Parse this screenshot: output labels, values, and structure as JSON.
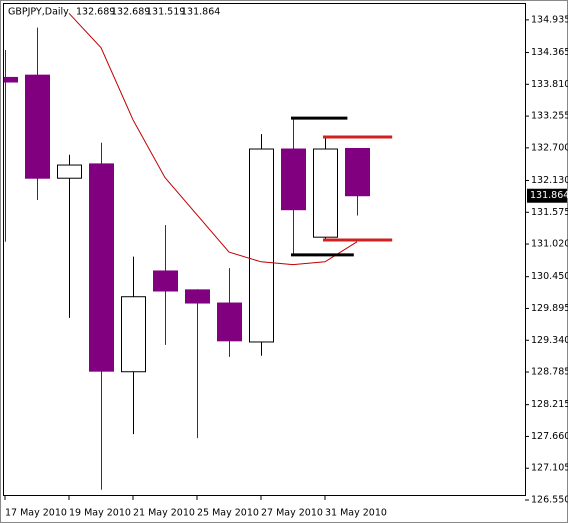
{
  "chart_data": {
    "type": "candlestick",
    "title": "GBPJPY,Daily",
    "categories": [
      "17 May 2010",
      null,
      "19 May 2010",
      null,
      "21 May 2010",
      null,
      "25 May 2010",
      null,
      "27 May 2010",
      null,
      "31 May 2010",
      null
    ],
    "open": [
      133.93,
      133.97,
      132.17,
      132.42,
      128.79,
      130.55,
      130.22,
      129.99,
      129.31,
      132.68,
      131.14,
      132.689
    ],
    "high": [
      134.41,
      134.8,
      132.58,
      132.79,
      130.8,
      131.35,
      130.23,
      130.6,
      132.94,
      133.24,
      132.87,
      132.689
    ],
    "low": [
      131.06,
      131.79,
      129.73,
      126.73,
      127.7,
      129.26,
      127.63,
      129.05,
      129.07,
      130.83,
      131.09,
      131.519
    ],
    "close": [
      133.85,
      132.17,
      132.4,
      128.8,
      130.1,
      130.2,
      129.99,
      129.33,
      132.68,
      131.62,
      132.68,
      131.864
    ],
    "up_color": "#ffffff",
    "down_color": "#800080",
    "ma": {
      "color": "#c00000",
      "values": [
        null,
        null,
        135.05,
        134.45,
        133.19,
        132.18,
        131.53,
        130.88,
        130.71,
        130.66,
        130.71,
        131.06
      ]
    },
    "levels": [
      {
        "value": 133.22,
        "from": 9,
        "to": 10.7,
        "color": "#000000"
      },
      {
        "value": 130.83,
        "from": 9,
        "to": 10.9,
        "color": "#000000"
      },
      {
        "value": 132.89,
        "from": 10,
        "to": 12.1,
        "color": "#d02020"
      },
      {
        "value": 131.09,
        "from": 10,
        "to": 12.1,
        "color": "#d02020"
      }
    ],
    "ylim": [
      126.55,
      135.23
    ],
    "yticks": [
      134.935,
      134.365,
      {
        "value": 133.81,
        "label": "133.810"
      },
      133.255,
      {
        "value": 132.7,
        "label": "132.700"
      },
      {
        "value": 132.13,
        "label": "132.130"
      },
      131.575,
      {
        "value": 131.02,
        "label": "131.020"
      },
      {
        "value": 130.45,
        "label": "130.450"
      },
      129.895,
      {
        "value": 129.34,
        "label": "129.340"
      },
      128.785,
      128.215,
      {
        "value": 127.66,
        "label": "127.660"
      },
      127.105,
      {
        "value": 126.55,
        "label": "126.550"
      }
    ]
  }
}
